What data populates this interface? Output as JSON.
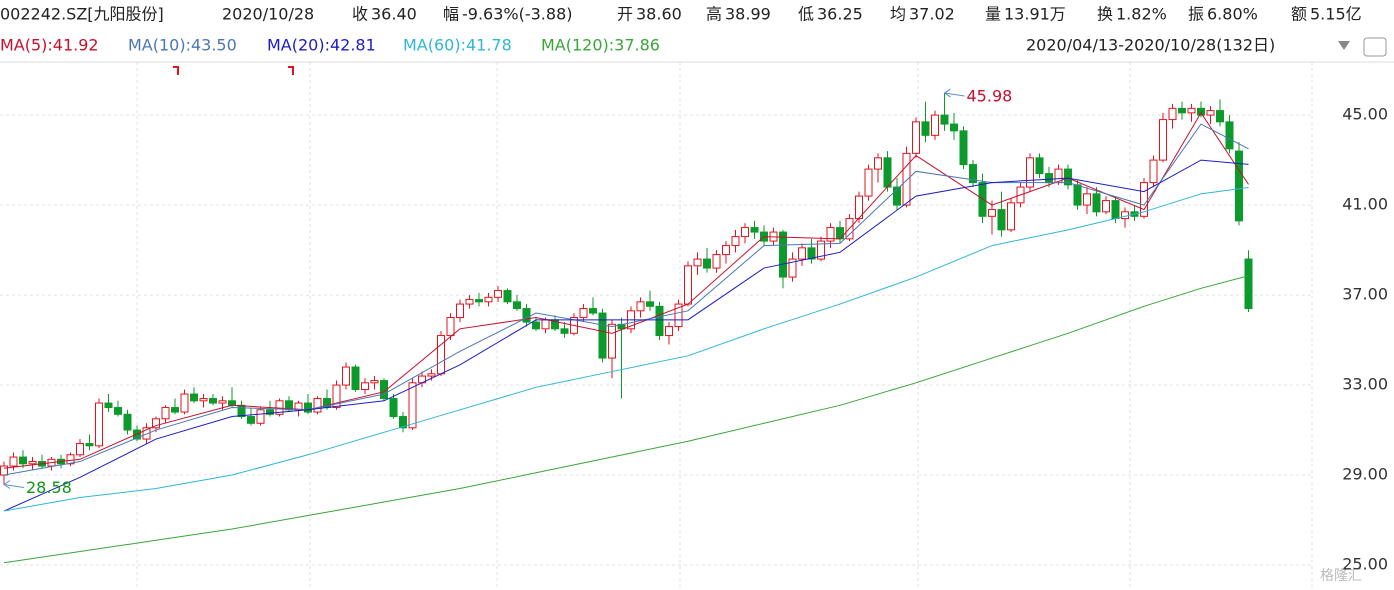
{
  "header": {
    "name": "002242.SZ[九阳股份]",
    "date": "2020/10/28",
    "items": [
      {
        "label": "收",
        "value": "36.40",
        "color": "#109618"
      },
      {
        "label": "幅",
        "value": "-9.63%(-3.88)",
        "color": "#109618"
      },
      {
        "label": "开",
        "value": "38.60",
        "color": "#109618"
      },
      {
        "label": "高",
        "value": "38.99",
        "color": "#109618"
      },
      {
        "label": "低",
        "value": "36.25",
        "color": "#109618"
      },
      {
        "label": "均",
        "value": "37.02",
        "color": "#109618"
      },
      {
        "label": "量",
        "value": "13.91万",
        "color": "#222222"
      },
      {
        "label": "换",
        "value": "1.82%",
        "color": "#222222"
      },
      {
        "label": "振",
        "value": "6.80%",
        "color": "#222222"
      },
      {
        "label": "额",
        "value": "5.15亿",
        "color": "#222222"
      }
    ],
    "range": "2020/04/13-2020/10/28(132日)",
    "watermark": "格隆汇"
  },
  "chart_data": {
    "type": "candlestick",
    "up_color": "#e3141f",
    "down_color": "#0b9a2b",
    "open": [
      29.0,
      29.4,
      29.8,
      29.5,
      29.6,
      29.4,
      29.7,
      29.5,
      29.9,
      30.4,
      30.3,
      32.2,
      32.0,
      31.7,
      31.0,
      30.6,
      31.1,
      31.5,
      32.0,
      31.8,
      32.6,
      32.3,
      32.4,
      32.2,
      32.3,
      32.1,
      31.6,
      31.3,
      31.9,
      31.7,
      32.3,
      31.9,
      32.2,
      31.8,
      32.4,
      32.0,
      33.0,
      33.8,
      32.8,
      33.1,
      33.2,
      32.4,
      31.6,
      31.1,
      33.1,
      33.4,
      33.5,
      35.2,
      36.0,
      36.6,
      36.8,
      36.7,
      36.9,
      37.2,
      36.7,
      36.4,
      35.8,
      35.5,
      35.9,
      35.5,
      35.3,
      36.0,
      36.4,
      36.2,
      34.2,
      35.7,
      35.5,
      36.3,
      36.7,
      36.5,
      35.2,
      35.6,
      36.6,
      38.3,
      38.6,
      38.2,
      38.8,
      39.2,
      39.6,
      40.0,
      39.8,
      39.4,
      39.8,
      37.8,
      38.6,
      39.1,
      38.6,
      39.4,
      40.0,
      39.5,
      40.4,
      41.4,
      42.6,
      43.1,
      41.8,
      41.0,
      43.3,
      44.7,
      44.1,
      45.0,
      44.6,
      44.3,
      42.8,
      42.0,
      40.5,
      40.8,
      39.9,
      41.1,
      41.8,
      43.1,
      42.4,
      42.0,
      42.6,
      41.9,
      41.0,
      41.5,
      40.7,
      41.2,
      40.4,
      40.7,
      40.5,
      42.0,
      43.0,
      44.8,
      45.3,
      45.1,
      45.3,
      45.0,
      45.2,
      44.7,
      43.4,
      38.6
    ],
    "high": [
      29.6,
      30.0,
      30.1,
      29.8,
      29.9,
      29.8,
      29.9,
      30.0,
      30.6,
      30.8,
      32.4,
      32.6,
      32.3,
      31.9,
      31.2,
      31.3,
      31.6,
      32.1,
      32.4,
      32.8,
      32.9,
      32.6,
      32.6,
      32.5,
      32.9,
      32.3,
      32.0,
      32.0,
      32.3,
      32.4,
      32.5,
      32.3,
      32.6,
      32.5,
      32.8,
      33.2,
      34.0,
      33.9,
      33.3,
      33.4,
      33.3,
      32.6,
      31.8,
      33.3,
      33.6,
      33.7,
      35.4,
      36.2,
      36.8,
      37.0,
      37.1,
      37.1,
      37.4,
      37.3,
      37.0,
      36.6,
      36.0,
      36.0,
      36.1,
      35.8,
      36.2,
      36.6,
      36.9,
      36.4,
      35.9,
      36.0,
      36.5,
      36.9,
      37.2,
      36.7,
      35.8,
      36.8,
      38.5,
      38.9,
      39.1,
      39.0,
      39.4,
      39.9,
      40.2,
      40.3,
      40.1,
      40.0,
      39.9,
      38.9,
      39.3,
      39.5,
      39.6,
      40.2,
      40.3,
      40.6,
      41.6,
      42.8,
      43.3,
      43.4,
      42.2,
      43.6,
      44.9,
      45.6,
      45.2,
      45.98,
      45.1,
      44.5,
      43.0,
      42.4,
      41.2,
      41.6,
      41.3,
      42.0,
      43.3,
      43.3,
      42.7,
      42.8,
      42.8,
      42.1,
      41.8,
      41.8,
      41.4,
      41.4,
      40.9,
      41.0,
      42.2,
      43.2,
      45.1,
      45.5,
      45.6,
      45.5,
      45.6,
      45.4,
      45.7,
      45.0,
      43.8,
      38.99
    ],
    "low": [
      28.58,
      29.2,
      29.3,
      29.2,
      29.3,
      29.2,
      29.3,
      29.4,
      29.8,
      30.1,
      30.2,
      31.8,
      31.6,
      30.8,
      30.5,
      30.4,
      30.9,
      31.3,
      31.7,
      31.7,
      32.2,
      32.0,
      32.1,
      31.9,
      32.0,
      31.5,
      31.2,
      31.2,
      31.6,
      31.6,
      31.8,
      31.6,
      31.7,
      31.7,
      31.9,
      31.9,
      32.8,
      32.7,
      32.6,
      32.8,
      32.3,
      31.5,
      30.9,
      31.0,
      32.9,
      33.2,
      33.4,
      35.0,
      35.8,
      36.4,
      36.5,
      36.5,
      36.7,
      36.6,
      36.3,
      35.6,
      35.4,
      35.3,
      35.4,
      35.1,
      35.2,
      35.8,
      36.1,
      34.0,
      33.3,
      32.4,
      35.3,
      36.0,
      36.3,
      35.0,
      34.8,
      35.4,
      36.5,
      37.9,
      38.0,
      38.0,
      38.4,
      38.9,
      39.3,
      39.5,
      39.2,
      39.2,
      37.3,
      37.6,
      38.3,
      38.4,
      38.5,
      39.1,
      39.3,
      39.4,
      40.2,
      41.2,
      42.0,
      41.6,
      40.8,
      40.9,
      43.1,
      43.8,
      43.9,
      44.3,
      43.9,
      42.6,
      41.8,
      40.2,
      39.7,
      39.6,
      39.8,
      40.9,
      41.6,
      42.2,
      41.8,
      41.9,
      41.7,
      40.8,
      40.6,
      40.5,
      40.6,
      40.2,
      40.0,
      40.3,
      40.4,
      41.8,
      42.9,
      44.4,
      44.8,
      44.7,
      44.9,
      44.6,
      44.5,
      43.3,
      40.1,
      36.25
    ],
    "close": [
      29.4,
      29.8,
      29.5,
      29.6,
      29.4,
      29.7,
      29.5,
      29.9,
      30.4,
      30.3,
      32.2,
      32.0,
      31.7,
      31.0,
      30.6,
      31.1,
      31.5,
      32.0,
      31.8,
      32.6,
      32.3,
      32.4,
      32.2,
      32.3,
      32.1,
      31.6,
      31.3,
      31.9,
      31.7,
      32.3,
      31.9,
      32.2,
      31.8,
      32.4,
      32.0,
      33.0,
      33.8,
      32.8,
      33.1,
      33.2,
      32.4,
      31.6,
      31.1,
      33.1,
      33.4,
      33.5,
      35.2,
      36.0,
      36.6,
      36.8,
      36.7,
      36.9,
      37.2,
      36.7,
      36.4,
      35.8,
      35.5,
      35.9,
      35.5,
      35.3,
      36.0,
      36.4,
      36.2,
      34.2,
      35.7,
      35.5,
      36.3,
      36.7,
      36.5,
      35.2,
      35.6,
      36.6,
      38.3,
      38.6,
      38.2,
      38.8,
      39.2,
      39.6,
      40.0,
      39.8,
      39.4,
      39.8,
      37.8,
      38.6,
      39.1,
      38.6,
      39.4,
      40.0,
      39.5,
      40.4,
      41.4,
      42.6,
      43.1,
      41.8,
      41.0,
      43.3,
      44.7,
      44.1,
      45.0,
      44.6,
      44.3,
      42.8,
      42.0,
      40.5,
      40.8,
      39.9,
      41.1,
      41.8,
      43.1,
      42.4,
      42.0,
      42.6,
      41.9,
      41.0,
      41.5,
      40.7,
      41.2,
      40.4,
      40.7,
      40.5,
      42.0,
      43.0,
      44.8,
      45.3,
      45.1,
      45.3,
      45.0,
      45.2,
      44.7,
      43.5,
      40.3,
      36.4
    ],
    "series": [
      {
        "name": "MA(5):41.92",
        "color": "#c8102e",
        "x": [
          0,
          8,
          16,
          24,
          32,
          40,
          48,
          56,
          64,
          72,
          80,
          88,
          96,
          104,
          112,
          120,
          126,
          131
        ],
        "values": [
          29.3,
          29.7,
          31.2,
          32.1,
          31.9,
          32.7,
          35.5,
          36.0,
          35.3,
          36.6,
          39.6,
          39.5,
          43.2,
          41.0,
          42.2,
          40.8,
          45.1,
          41.92
        ]
      },
      {
        "name": "MA(10):43.50",
        "color": "#4a78b5",
        "x": [
          0,
          8,
          16,
          24,
          32,
          40,
          48,
          56,
          64,
          72,
          80,
          88,
          96,
          104,
          112,
          120,
          126,
          131
        ],
        "values": [
          29.0,
          29.6,
          31.0,
          32.0,
          31.9,
          32.6,
          34.5,
          36.2,
          35.6,
          36.3,
          39.2,
          39.3,
          42.5,
          42.0,
          42.0,
          41.0,
          44.6,
          43.5
        ]
      },
      {
        "name": "MA(20):42.81",
        "color": "#1c1cc8",
        "x": [
          0,
          8,
          16,
          24,
          32,
          40,
          48,
          56,
          64,
          72,
          80,
          88,
          96,
          104,
          112,
          120,
          126,
          131
        ],
        "values": [
          27.4,
          28.9,
          30.6,
          31.6,
          31.9,
          32.3,
          33.9,
          35.9,
          35.9,
          35.9,
          38.2,
          38.9,
          41.4,
          42.0,
          42.2,
          41.6,
          43.0,
          42.81
        ]
      },
      {
        "name": "MA(60):41.78",
        "color": "#2fb6d8",
        "x": [
          0,
          8,
          16,
          24,
          32,
          40,
          48,
          56,
          64,
          72,
          80,
          88,
          96,
          104,
          112,
          120,
          126,
          131
        ],
        "values": [
          27.4,
          28.0,
          28.4,
          29.0,
          29.9,
          30.9,
          31.9,
          32.9,
          33.6,
          34.3,
          35.5,
          36.6,
          37.8,
          39.2,
          39.9,
          40.7,
          41.5,
          41.78
        ]
      },
      {
        "name": "MA(120):37.86",
        "color": "#3aa63a",
        "x": [
          0,
          8,
          16,
          24,
          32,
          40,
          48,
          56,
          64,
          72,
          80,
          88,
          96,
          104,
          112,
          120,
          126,
          131
        ],
        "values": [
          25.1,
          25.6,
          26.1,
          26.6,
          27.2,
          27.8,
          28.4,
          29.1,
          29.8,
          30.5,
          31.3,
          32.1,
          33.1,
          34.2,
          35.3,
          36.5,
          37.3,
          37.86
        ]
      }
    ],
    "annotations": [
      {
        "text": "45.98",
        "x": 99,
        "y": 45.98,
        "color": "#c8102e"
      },
      {
        "text": "28.58",
        "x": 0,
        "y": 28.58,
        "color": "#109618"
      }
    ],
    "ylim": [
      23.89,
      47.36
    ],
    "yticks": [
      {
        "value": 25,
        "label": "25.00"
      },
      {
        "value": 29,
        "label": "29.00"
      },
      {
        "value": 33,
        "label": "33.00"
      },
      {
        "value": 37,
        "label": "37.00"
      },
      {
        "value": 41,
        "label": "41.00"
      },
      {
        "value": 45,
        "label": "45.00"
      }
    ],
    "grid": true
  }
}
